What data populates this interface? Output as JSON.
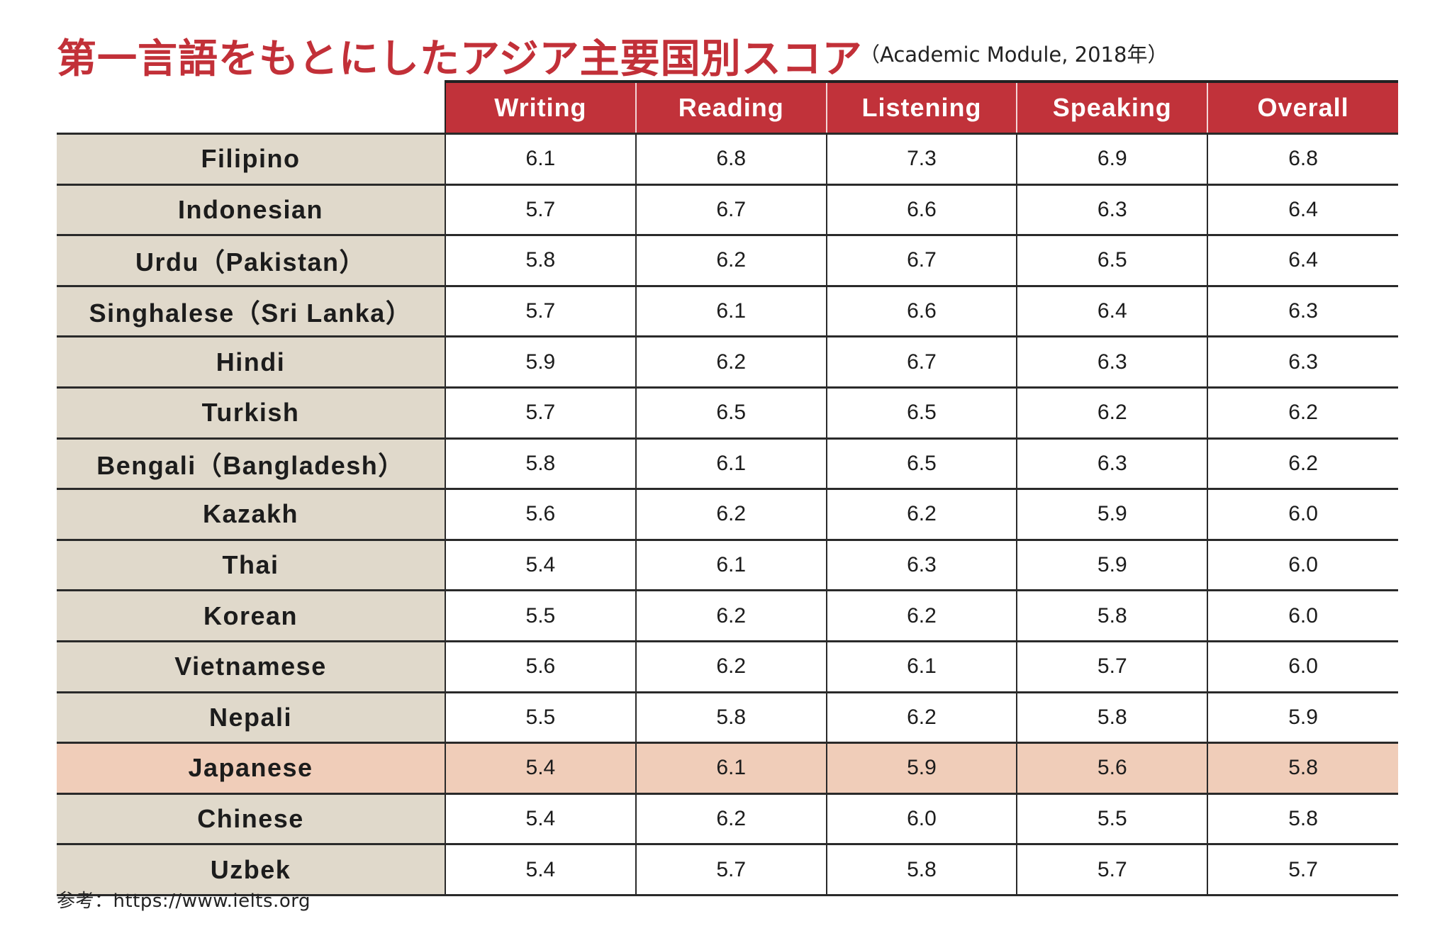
{
  "title": "第一言語をもとにしたアジア主要国別スコア",
  "subtitle": "（Academic Module, 2018年）",
  "colors": {
    "title_red": "#c23038",
    "header_red": "#c1323a",
    "label_bg": "#e0d9cb",
    "highlight_bg": "#f0cdb9"
  },
  "table": {
    "columns": [
      "Writing",
      "Reading",
      "Listening",
      "Speaking",
      "Overall"
    ],
    "highlighted_row": "Japanese",
    "rows": [
      {
        "language": "Filipino",
        "values": [
          "6.1",
          "6.8",
          "7.3",
          "6.9",
          "6.8"
        ]
      },
      {
        "language": "Indonesian",
        "values": [
          "5.7",
          "6.7",
          "6.6",
          "6.3",
          "6.4"
        ]
      },
      {
        "language": "Urdu（Pakistan）",
        "values": [
          "5.8",
          "6.2",
          "6.7",
          "6.5",
          "6.4"
        ]
      },
      {
        "language": "Singhalese（Sri Lanka）",
        "values": [
          "5.7",
          "6.1",
          "6.6",
          "6.4",
          "6.3"
        ]
      },
      {
        "language": "Hindi",
        "values": [
          "5.9",
          "6.2",
          "6.7",
          "6.3",
          "6.3"
        ]
      },
      {
        "language": "Turkish",
        "values": [
          "5.7",
          "6.5",
          "6.5",
          "6.2",
          "6.2"
        ]
      },
      {
        "language": "Bengali（Bangladesh）",
        "values": [
          "5.8",
          "6.1",
          "6.5",
          "6.3",
          "6.2"
        ]
      },
      {
        "language": "Kazakh",
        "values": [
          "5.6",
          "6.2",
          "6.2",
          "5.9",
          "6.0"
        ]
      },
      {
        "language": "Thai",
        "values": [
          "5.4",
          "6.1",
          "6.3",
          "5.9",
          "6.0"
        ]
      },
      {
        "language": "Korean",
        "values": [
          "5.5",
          "6.2",
          "6.2",
          "5.8",
          "6.0"
        ]
      },
      {
        "language": "Vietnamese",
        "values": [
          "5.6",
          "6.2",
          "6.1",
          "5.7",
          "6.0"
        ]
      },
      {
        "language": "Nepali",
        "values": [
          "5.5",
          "5.8",
          "6.2",
          "5.8",
          "5.9"
        ]
      },
      {
        "language": "Japanese",
        "values": [
          "5.4",
          "6.1",
          "5.9",
          "5.6",
          "5.8"
        ]
      },
      {
        "language": "Chinese",
        "values": [
          "5.4",
          "6.2",
          "6.0",
          "5.5",
          "5.8"
        ]
      },
      {
        "language": "Uzbek",
        "values": [
          "5.4",
          "5.7",
          "5.8",
          "5.7",
          "5.7"
        ]
      }
    ]
  },
  "source": "参考：https://www.ielts.org"
}
